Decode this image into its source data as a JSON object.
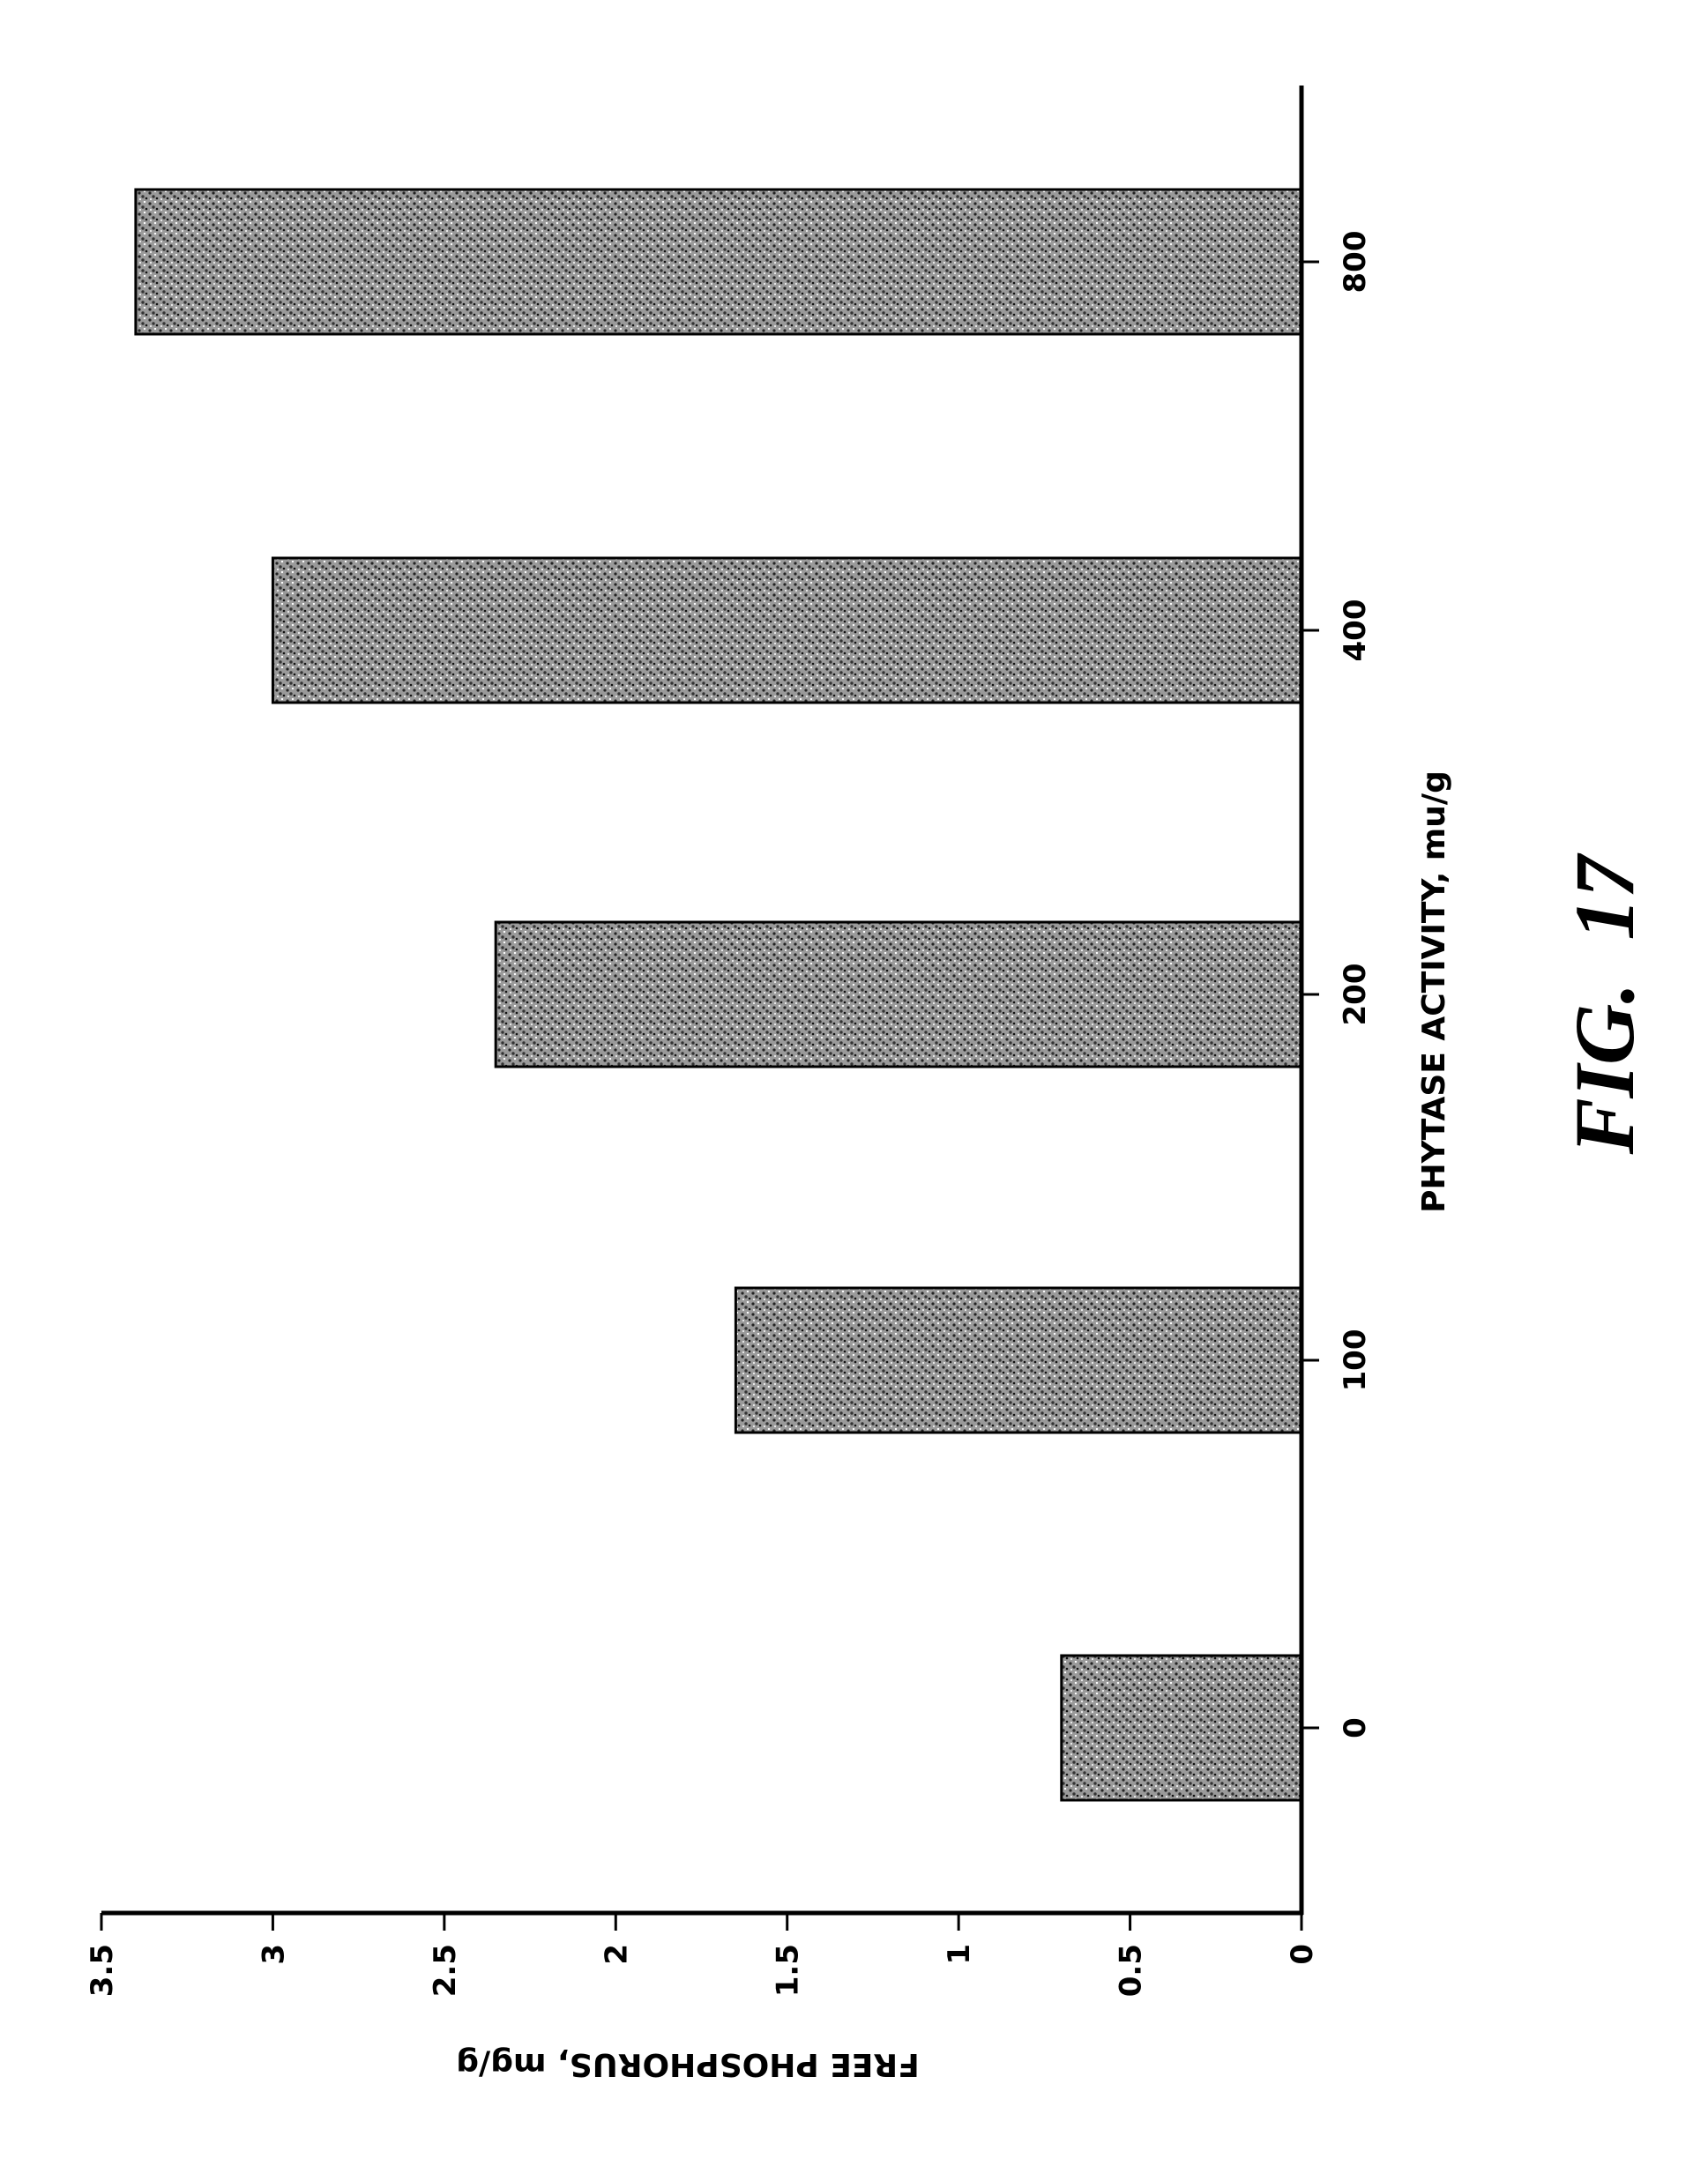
{
  "chart_data": {
    "type": "bar",
    "orientation": "rotated (page turned 90°)",
    "categories": [
      "0",
      "100",
      "200",
      "400",
      "800"
    ],
    "values": [
      0.7,
      1.65,
      2.35,
      3.0,
      3.4
    ],
    "xlabel": "PHYTASE ACTIVITY, mu/g",
    "ylabel": "FREE PHOSPHORUS, mg/g",
    "ylim": [
      0,
      3.5
    ],
    "yticks": [
      "0",
      "0.5",
      "1",
      "1.5",
      "2",
      "2.5",
      "3",
      "3.5"
    ],
    "grid": false,
    "bar_fill": "stippled gray",
    "colors": {
      "bar": "#6e6e6e",
      "axis": "#000000"
    }
  },
  "figure_label": "FIG.  17"
}
